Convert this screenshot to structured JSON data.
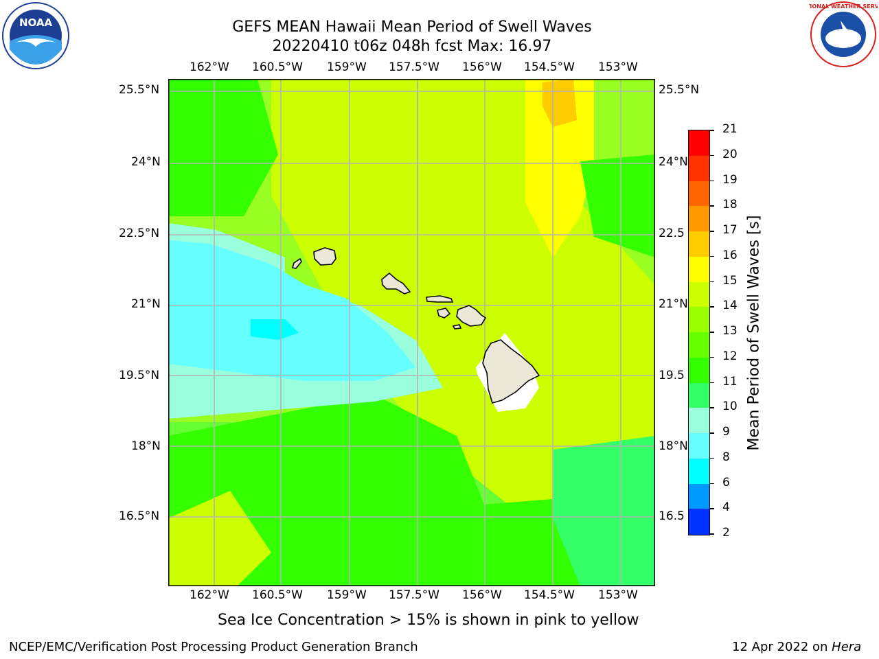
{
  "title": {
    "line1": "GEFS MEAN Hawaii Mean Period of Swell Waves",
    "line2": "20220410 t06z 048h fcst   Max: 16.97"
  },
  "map": {
    "lon_labels": [
      "162°W",
      "160.5°W",
      "159°W",
      "157.5°W",
      "156°W",
      "154.5°W",
      "153°W"
    ],
    "lat_labels": [
      "25.5°N",
      "24°N",
      "22.5°N",
      "21°N",
      "19.5°N",
      "18°N",
      "16.5°N"
    ],
    "lat_labels_right": [
      "25.5°N",
      "24°N",
      "22.5",
      "21°N",
      "19.5",
      "18°N",
      "16.5"
    ],
    "islands": [
      "Kauai",
      "Niihau",
      "Oahu",
      "Molokai",
      "Lanai",
      "Maui",
      "Kahoolawe",
      "Hawaii"
    ],
    "max_value": 16.97
  },
  "colorbar": {
    "label": "Mean Period of Swell Waves [s]",
    "ticks": [
      "21",
      "20",
      "19",
      "18",
      "17",
      "16",
      "15",
      "14",
      "13",
      "12",
      "11",
      "10",
      "9",
      "8",
      "6",
      "4",
      "2"
    ],
    "colors": [
      "#ff0000",
      "#ff3300",
      "#ff6600",
      "#ff9900",
      "#ffcc00",
      "#ffff00",
      "#ccff00",
      "#99ff00",
      "#66ff00",
      "#33ff00",
      "#33ff66",
      "#99ffdd",
      "#66ffff",
      "#00ffff",
      "#0099ff",
      "#0033ff"
    ]
  },
  "caption": "Sea Ice Concentration > 15% is shown in pink to yellow",
  "footer": {
    "left": "NCEP/EMC/Verification Post Processing Product Generation Branch",
    "right_prefix": "12 Apr 2022 on ",
    "right_host": "Hera"
  },
  "logos": {
    "noaa_text": "NOAA",
    "nws_text": "NATIONAL WEATHER SERVICE"
  }
}
